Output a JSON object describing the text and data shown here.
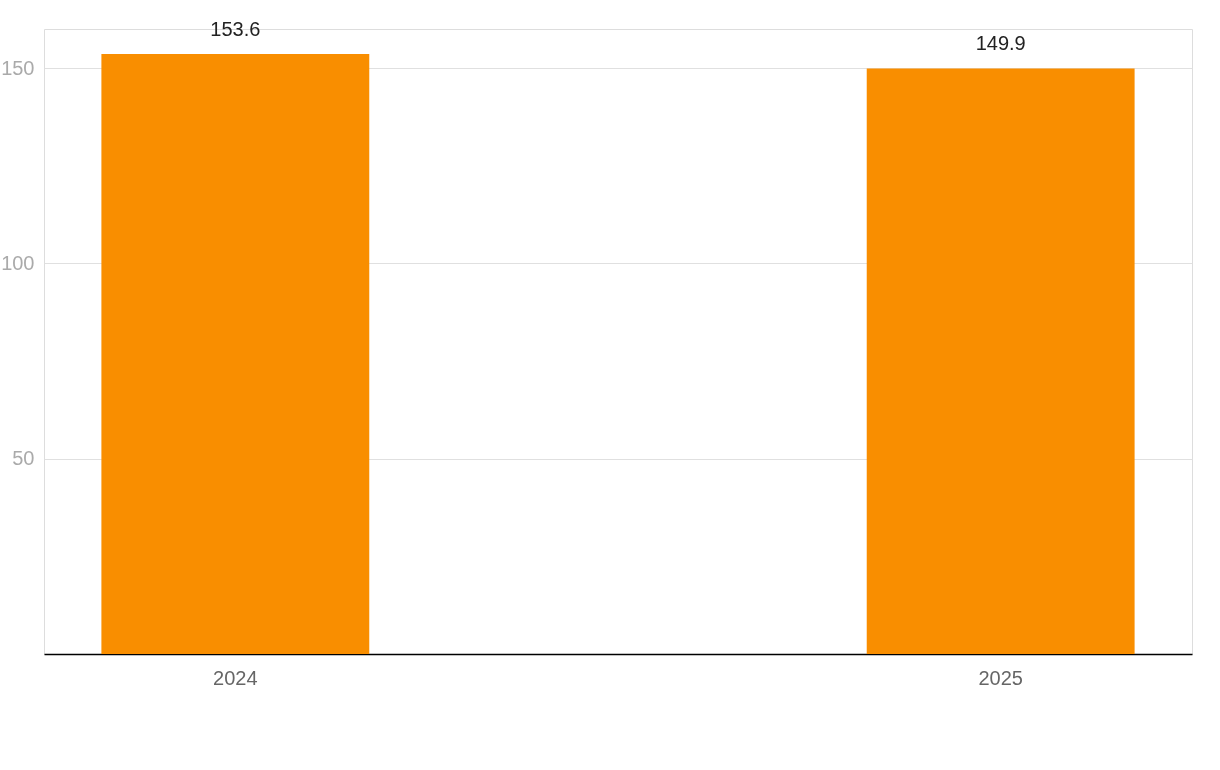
{
  "chart_data": {
    "type": "bar",
    "categories": [
      "2024",
      "2025"
    ],
    "values": [
      153.6,
      149.9
    ],
    "color": "#f98e00",
    "ylim": [
      0,
      160
    ],
    "yticks": [
      50,
      100,
      150
    ],
    "grid": "y",
    "data_labels": true
  }
}
